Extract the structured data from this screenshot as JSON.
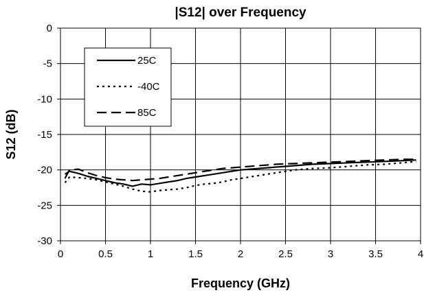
{
  "chart_data": {
    "type": "line",
    "title": "|S12| over Frequency",
    "xlabel": "Frequency (GHz)",
    "ylabel": "S12 (dB)",
    "xlim": [
      0,
      4
    ],
    "ylim": [
      -30,
      0
    ],
    "xticks": [
      "0",
      "0.5",
      "1",
      "1.5",
      "2",
      "2.5",
      "3",
      "3.5",
      "4"
    ],
    "yticks": [
      "0",
      "-5",
      "-10",
      "-15",
      "-20",
      "-25",
      "-30"
    ],
    "grid": true,
    "legend_position": "top-left",
    "series": [
      {
        "name": "25C",
        "style": "solid",
        "color": "#000000",
        "x": [
          0.05,
          0.1,
          0.2,
          0.3,
          0.4,
          0.5,
          0.6,
          0.7,
          0.8,
          0.9,
          1.0,
          1.1,
          1.2,
          1.3,
          1.4,
          1.5,
          1.6,
          1.7,
          1.8,
          1.9,
          2.0,
          2.2,
          2.4,
          2.6,
          2.8,
          3.0,
          3.2,
          3.4,
          3.6,
          3.8,
          3.95
        ],
        "y": [
          -20.6,
          -20.2,
          -20.5,
          -20.9,
          -21.2,
          -21.5,
          -21.8,
          -22.0,
          -22.3,
          -22.0,
          -22.1,
          -21.9,
          -21.7,
          -21.5,
          -21.2,
          -21.0,
          -20.8,
          -20.6,
          -20.4,
          -20.2,
          -20.0,
          -19.8,
          -19.6,
          -19.4,
          -19.2,
          -19.1,
          -19.0,
          -18.9,
          -18.8,
          -18.7,
          -18.6
        ]
      },
      {
        "name": "-40C",
        "style": "dotted",
        "color": "#000000",
        "x": [
          0.05,
          0.1,
          0.2,
          0.3,
          0.4,
          0.5,
          0.6,
          0.7,
          0.8,
          0.9,
          1.0,
          1.1,
          1.2,
          1.3,
          1.4,
          1.5,
          1.6,
          1.7,
          1.8,
          1.9,
          2.0,
          2.2,
          2.4,
          2.6,
          2.8,
          3.0,
          3.2,
          3.4,
          3.6,
          3.8,
          3.95
        ],
        "y": [
          -21.8,
          -21.0,
          -21.1,
          -21.2,
          -21.4,
          -21.7,
          -22.0,
          -22.3,
          -22.7,
          -23.0,
          -23.1,
          -22.9,
          -22.8,
          -22.7,
          -22.5,
          -22.2,
          -22.0,
          -21.9,
          -21.7,
          -21.4,
          -21.2,
          -20.8,
          -20.4,
          -20.0,
          -19.8,
          -19.7,
          -19.5,
          -19.3,
          -19.2,
          -19.0,
          -18.8
        ]
      },
      {
        "name": "85C",
        "style": "dashed",
        "color": "#000000",
        "x": [
          0.05,
          0.1,
          0.2,
          0.3,
          0.4,
          0.5,
          0.6,
          0.7,
          0.8,
          0.9,
          1.0,
          1.1,
          1.2,
          1.3,
          1.4,
          1.5,
          1.6,
          1.7,
          1.8,
          1.9,
          2.0,
          2.2,
          2.4,
          2.6,
          2.8,
          3.0,
          3.2,
          3.4,
          3.6,
          3.8,
          3.95
        ],
        "y": [
          -21.2,
          -20.0,
          -19.9,
          -20.4,
          -20.8,
          -21.1,
          -21.3,
          -21.4,
          -21.5,
          -21.4,
          -21.3,
          -21.2,
          -21.0,
          -20.8,
          -20.6,
          -20.4,
          -20.2,
          -20.0,
          -19.8,
          -19.7,
          -19.6,
          -19.4,
          -19.2,
          -19.1,
          -19.0,
          -18.9,
          -18.8,
          -18.7,
          -18.6,
          -18.5,
          -18.5
        ]
      }
    ]
  }
}
